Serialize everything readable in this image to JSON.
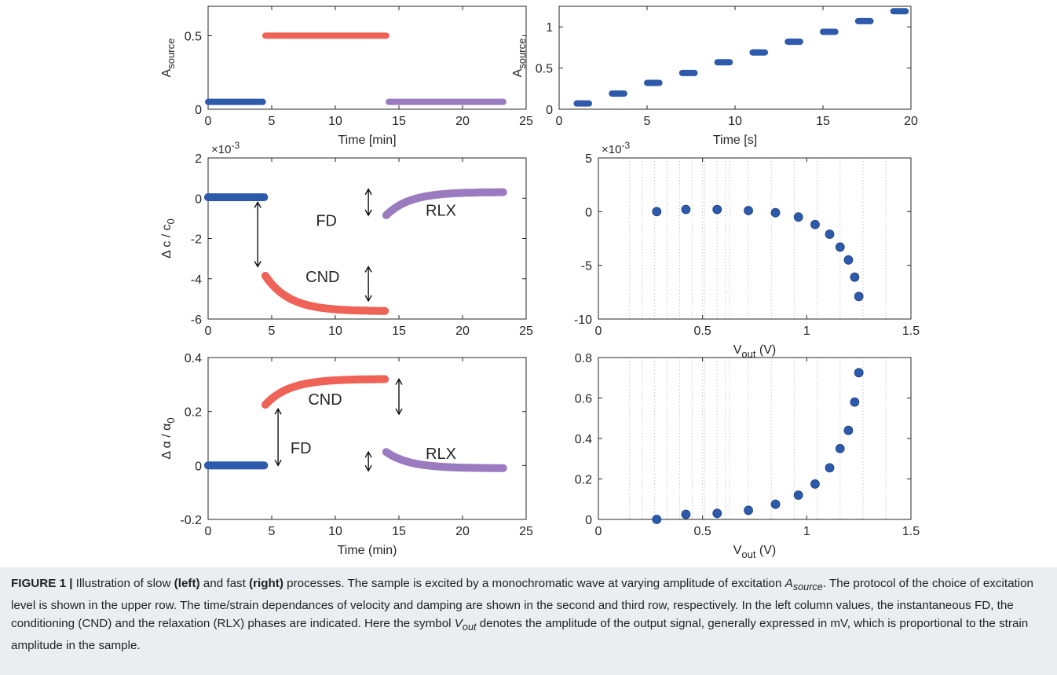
{
  "chart_data": [
    {
      "id": "top-left",
      "type": "line",
      "xlabel": "Time [min]",
      "ylabel": "A",
      "ylabel_sub": "source",
      "xlim": [
        0,
        25
      ],
      "ylim": [
        0,
        0.7
      ],
      "xticks": [
        0,
        5,
        10,
        15,
        20,
        25
      ],
      "xtick_labels": [
        "0",
        "5",
        "10",
        "15",
        "20",
        "25"
      ],
      "yticks": [
        0,
        0.5
      ],
      "ytick_labels": [
        "0",
        "0.5"
      ],
      "series": [
        {
          "color": "#2e5aab",
          "x": [
            0,
            4.3
          ],
          "y": [
            0.05,
            0.05
          ]
        },
        {
          "color": "#ee6257",
          "x": [
            4.5,
            14.0
          ],
          "y": [
            0.5,
            0.5
          ]
        },
        {
          "color": "#9b7bc0",
          "x": [
            14.2,
            23.2
          ],
          "y": [
            0.05,
            0.05
          ]
        }
      ]
    },
    {
      "id": "top-right",
      "type": "scatter",
      "xlabel": "Time [s]",
      "ylabel": "A",
      "ylabel_sub": "source",
      "xlim": [
        0,
        20
      ],
      "ylim": [
        0,
        1.25
      ],
      "xticks": [
        0,
        5,
        10,
        15,
        20
      ],
      "xtick_labels": [
        "0",
        "5",
        "10",
        "15",
        "20"
      ],
      "yticks": [
        0,
        0.5,
        1
      ],
      "ytick_labels": [
        "0",
        "0.5",
        "1"
      ],
      "series": [
        {
          "color": "#2e5aab",
          "segments": [
            [
              1.0,
              1.7,
              0.07
            ],
            [
              3.0,
              3.7,
              0.19
            ],
            [
              5.0,
              5.7,
              0.32
            ],
            [
              7.0,
              7.7,
              0.44
            ],
            [
              9.0,
              9.7,
              0.57
            ],
            [
              11.0,
              11.7,
              0.69
            ],
            [
              13.0,
              13.7,
              0.82
            ],
            [
              15.0,
              15.7,
              0.94
            ],
            [
              17.0,
              17.7,
              1.07
            ],
            [
              19.0,
              19.7,
              1.19
            ]
          ]
        }
      ]
    },
    {
      "id": "mid-left",
      "type": "scatter",
      "xlabel": "",
      "ylabel": "Δ c / c",
      "ylabel_sub": "0",
      "exponent": "×10",
      "exponent_power": "-3",
      "xlim": [
        0,
        25
      ],
      "ylim": [
        -6,
        2
      ],
      "xticks": [
        0,
        5,
        10,
        15,
        20,
        25
      ],
      "xtick_labels": [
        "0",
        "5",
        "10",
        "15",
        "20",
        "25"
      ],
      "yticks": [
        -6,
        -4,
        -2,
        0,
        2
      ],
      "ytick_labels": [
        "-6",
        "-4",
        "-2",
        "0",
        "2"
      ],
      "series": [
        {
          "color": "#2e5aab",
          "curve": "flat",
          "x0": 0,
          "x1": 4.4,
          "y0": 0.05,
          "y1": 0.05
        },
        {
          "color": "#ee6257",
          "curve": "decay",
          "x0": 4.5,
          "x1": 13.9,
          "y0": -3.85,
          "y1": -5.6
        },
        {
          "color": "#9b7bc0",
          "curve": "decay",
          "x0": 14.0,
          "x1": 23.2,
          "y0": -0.85,
          "y1": 0.3
        }
      ],
      "annotations": [
        {
          "text": "FD",
          "x": 9.3,
          "y": -1.1
        },
        {
          "text": "CND",
          "x": 9.0,
          "y": -3.9
        },
        {
          "text": "RLX",
          "x": 18.3,
          "y": -0.6
        }
      ],
      "arrows": [
        {
          "x": 3.9,
          "y0": -0.2,
          "y1": -3.4
        },
        {
          "x": 12.6,
          "y0": 0.45,
          "y1": -0.85
        },
        {
          "x": 12.6,
          "y0": -3.4,
          "y1": -5.1
        }
      ]
    },
    {
      "id": "mid-right",
      "type": "scatter",
      "xlabel": "V",
      "xlabel_sub": "out",
      "xlabel_unit": "(V)",
      "ylabel": "",
      "exponent": "×10",
      "exponent_power": "-3",
      "xscale": "log",
      "xlim": [
        0,
        1.5
      ],
      "ylim": [
        -10,
        5
      ],
      "xticks": [
        0,
        0.5,
        1,
        1.5
      ],
      "xtick_labels": [
        "0",
        "0.5",
        "1",
        "1.5"
      ],
      "yticks": [
        -10,
        -5,
        0,
        5
      ],
      "ytick_labels": [
        "-10",
        "-5",
        "0",
        "5"
      ],
      "grid": true,
      "series": [
        {
          "color": "#2e5aab",
          "x": [
            0.28,
            0.42,
            0.57,
            0.72,
            0.85,
            0.96,
            1.04,
            1.11,
            1.16,
            1.2,
            1.23,
            1.25
          ],
          "y": [
            0.0,
            0.2,
            0.2,
            0.1,
            -0.1,
            -0.5,
            -1.2,
            -2.1,
            -3.3,
            -4.5,
            -6.1,
            -7.9
          ]
        }
      ]
    },
    {
      "id": "bottom-left",
      "type": "scatter",
      "xlabel": "Time (min)",
      "ylabel": "Δ α / α",
      "ylabel_sub": "0",
      "xlim": [
        0,
        25
      ],
      "ylim": [
        -0.2,
        0.4
      ],
      "xticks": [
        0,
        5,
        10,
        15,
        20,
        25
      ],
      "xtick_labels": [
        "0",
        "5",
        "10",
        "15",
        "20",
        "25"
      ],
      "yticks": [
        -0.2,
        0,
        0.2,
        0.4
      ],
      "ytick_labels": [
        "-0.2",
        "0",
        "0.2",
        "0.4"
      ],
      "series": [
        {
          "color": "#2e5aab",
          "curve": "flat",
          "x0": 0,
          "x1": 4.4,
          "y0": 0.0,
          "y1": 0.0
        },
        {
          "color": "#ee6257",
          "curve": "decay",
          "x0": 4.5,
          "x1": 13.9,
          "y0": 0.225,
          "y1": 0.32
        },
        {
          "color": "#9b7bc0",
          "curve": "decay",
          "x0": 14.0,
          "x1": 23.2,
          "y0": 0.05,
          "y1": -0.01
        }
      ],
      "annotations": [
        {
          "text": "CND",
          "x": 9.2,
          "y": 0.245
        },
        {
          "text": "FD",
          "x": 7.3,
          "y": 0.065
        },
        {
          "text": "RLX",
          "x": 18.3,
          "y": 0.045
        }
      ],
      "arrows": [
        {
          "x": 5.5,
          "y0": 0.21,
          "y1": 0.0
        },
        {
          "x": 15.0,
          "y0": 0.32,
          "y1": 0.19
        },
        {
          "x": 12.6,
          "y0": 0.05,
          "y1": -0.02
        }
      ]
    },
    {
      "id": "bottom-right",
      "type": "scatter",
      "xlabel": "V",
      "xlabel_sub": "out",
      "xlabel_unit": "(V)",
      "ylabel": "",
      "xscale": "log",
      "xlim": [
        0,
        1.5
      ],
      "ylim": [
        0,
        0.8
      ],
      "xticks": [
        0,
        0.5,
        1,
        1.5
      ],
      "xtick_labels": [
        "0",
        "0.5",
        "1",
        "1.5"
      ],
      "yticks": [
        0,
        0.2,
        0.4,
        0.6,
        0.8
      ],
      "ytick_labels": [
        "0",
        "0.2",
        "0.4",
        "0.6",
        "0.8"
      ],
      "grid": true,
      "series": [
        {
          "color": "#2e5aab",
          "x": [
            0.28,
            0.42,
            0.57,
            0.72,
            0.85,
            0.96,
            1.04,
            1.11,
            1.16,
            1.2,
            1.23,
            1.25
          ],
          "y": [
            0.0,
            0.025,
            0.03,
            0.045,
            0.075,
            0.12,
            0.175,
            0.255,
            0.35,
            0.44,
            0.58,
            0.725
          ]
        }
      ]
    }
  ],
  "caption": {
    "label": "FIGURE 1 |",
    "text_1": " Illustration of slow ",
    "bold_left": "(left)",
    "text_2": " and fast ",
    "bold_right": "(right)",
    "text_3": " processes. The sample is excited by a monochromatic wave at varying amplitude of excitation ",
    "sym_a": "A",
    "sym_a_sub": "source",
    "text_4": ". The protocol of the choice of excitation level is shown in the upper row. The time/strain dependances of velocity and damping are shown in the second and third row, respectively. In the left column values, the instantaneous FD, the conditioning (CND) and the relaxation (RLX) phases are indicated. Here the symbol ",
    "sym_v": "V",
    "sym_v_sub": "out",
    "text_5": " denotes the amplitude of the output signal, generally expressed in mV, which is proportional to the strain amplitude in the sample."
  }
}
